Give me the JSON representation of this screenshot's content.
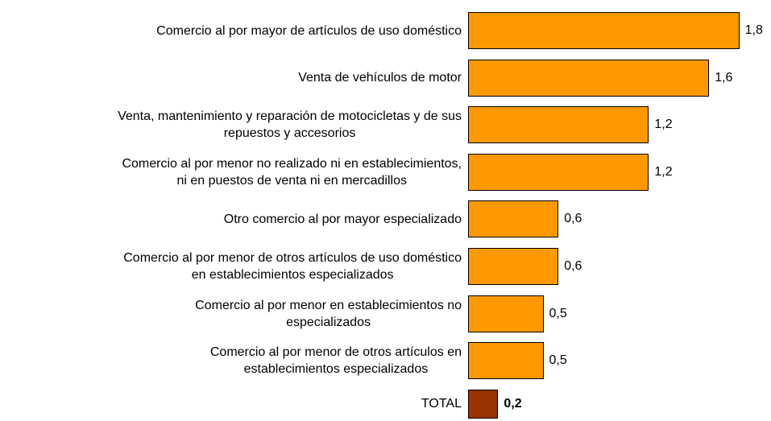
{
  "chart_data": {
    "type": "bar",
    "orientation": "horizontal",
    "categories": [
      "Comercio al por mayor de artículos de uso doméstico",
      "Venta de vehículos de motor",
      "Venta, mantenimiento y reparación de motocicletas y de sus\nrepuestos y accesorios",
      "Comercio al por menor no realizado ni en establecimientos,\nni en puestos de venta ni en mercadillos",
      "Otro comercio al por mayor especializado",
      "Comercio al por menor de otros artículos de uso doméstico\nen establecimientos especializados",
      "Comercio al por menor en establecimientos no\nespecializados",
      "Comercio al por menor de otros artículos en\nestablecimientos especializados",
      "TOTAL"
    ],
    "values": [
      1.8,
      1.6,
      1.2,
      1.2,
      0.6,
      0.6,
      0.5,
      0.5,
      0.2
    ],
    "value_labels": [
      "1,8",
      "1,6",
      "1,2",
      "1,2",
      "0,6",
      "0,6",
      "0,5",
      "0,5",
      "0,2"
    ],
    "colors": [
      "#ff9900",
      "#ff9900",
      "#ff9900",
      "#ff9900",
      "#ff9900",
      "#ff9900",
      "#ff9900",
      "#ff9900",
      "#993300"
    ]
  }
}
